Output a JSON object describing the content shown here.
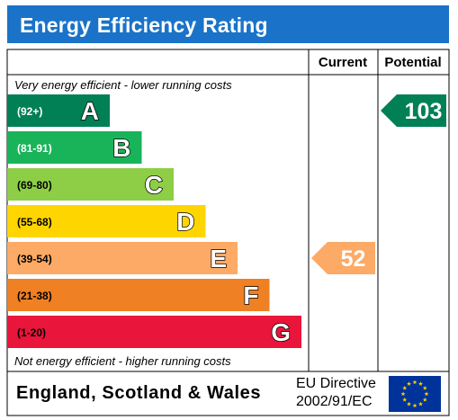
{
  "header": {
    "title": "Energy Efficiency Rating"
  },
  "columns": {
    "current": "Current",
    "potential": "Potential"
  },
  "notes": {
    "top": "Very energy efficient - lower running costs",
    "bottom": "Not energy efficient - higher running costs"
  },
  "footer": {
    "region": "England, Scotland & Wales",
    "directive_line1": "EU Directive",
    "directive_line2": "2002/91/EC"
  },
  "chart_data": {
    "type": "bar",
    "title": "Energy Efficiency Rating",
    "categories": [
      "A",
      "B",
      "C",
      "D",
      "E",
      "F",
      "G"
    ],
    "ranges": [
      "(92+)",
      "(81-91)",
      "(69-80)",
      "(55-68)",
      "(39-54)",
      "(21-38)",
      "(1-20)"
    ],
    "colors": [
      "#008054",
      "#19b459",
      "#8dce46",
      "#ffd500",
      "#fcaa65",
      "#ef8023",
      "#e9153b"
    ],
    "current": {
      "value": 52,
      "band": "E",
      "color": "#fcaa65"
    },
    "potential": {
      "value": 103,
      "band": "A",
      "color": "#008054"
    }
  }
}
